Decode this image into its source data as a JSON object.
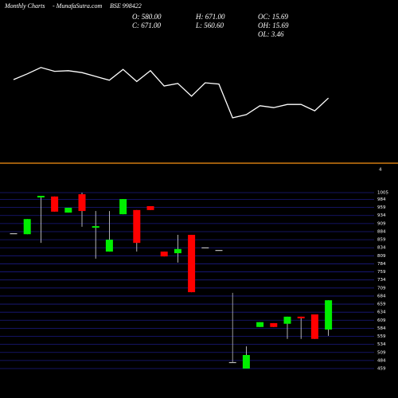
{
  "header": {
    "period": "Monthly Charts",
    "site": "- MunafaSutra.com",
    "symbol": "BSE 998422",
    "stats": [
      "O: 580.00",
      "H: 671.00",
      "OC: 15.69",
      "C: 671.00",
      "L: 560.60",
      "OH: 15.69",
      "OL: 3.46"
    ],
    "separator_label": "4"
  },
  "chart_data": [
    {
      "type": "line",
      "color": "#ffffff",
      "ylim": [
        0,
        100
      ],
      "values": [
        75,
        84,
        94,
        88,
        89,
        86,
        80,
        74,
        91,
        72,
        89,
        65,
        69,
        49,
        70,
        68,
        15,
        20,
        34,
        31,
        36,
        36,
        26,
        46
      ]
    },
    {
      "type": "candlestick",
      "up_color": "#00ee00",
      "down_color": "#ff0000",
      "doji_color": "#bbbbbb",
      "grid_color": "#1a1a80",
      "ylim": [
        459,
        1005
      ],
      "yticks": [
        1005,
        984,
        959,
        934,
        909,
        884,
        859,
        834,
        809,
        784,
        759,
        734,
        709,
        684,
        659,
        634,
        609,
        584,
        559,
        534,
        509,
        484,
        459
      ],
      "open": [
        879,
        876,
        990,
        993,
        943,
        1000,
        896,
        822,
        938,
        951,
        963,
        822,
        817,
        874,
        835,
        827,
        479,
        459,
        588,
        600,
        598,
        620,
        627,
        580
      ],
      "high": [
        879,
        923,
        995,
        993,
        958,
        1005,
        948,
        948,
        985,
        951,
        963,
        822,
        874,
        874,
        835,
        827,
        694,
        528,
        603,
        600,
        620,
        620,
        627,
        671
      ],
      "low": [
        879,
        876,
        849,
        946,
        943,
        899,
        800,
        822,
        938,
        822,
        951,
        807,
        788,
        696,
        835,
        827,
        479,
        459,
        588,
        588,
        551,
        551,
        551,
        560.6
      ],
      "close": [
        879,
        923,
        995,
        946,
        958,
        948,
        901,
        859,
        985,
        849,
        951,
        807,
        830,
        696,
        835,
        827,
        479,
        501,
        603,
        588,
        620,
        615,
        551,
        671
      ]
    }
  ]
}
